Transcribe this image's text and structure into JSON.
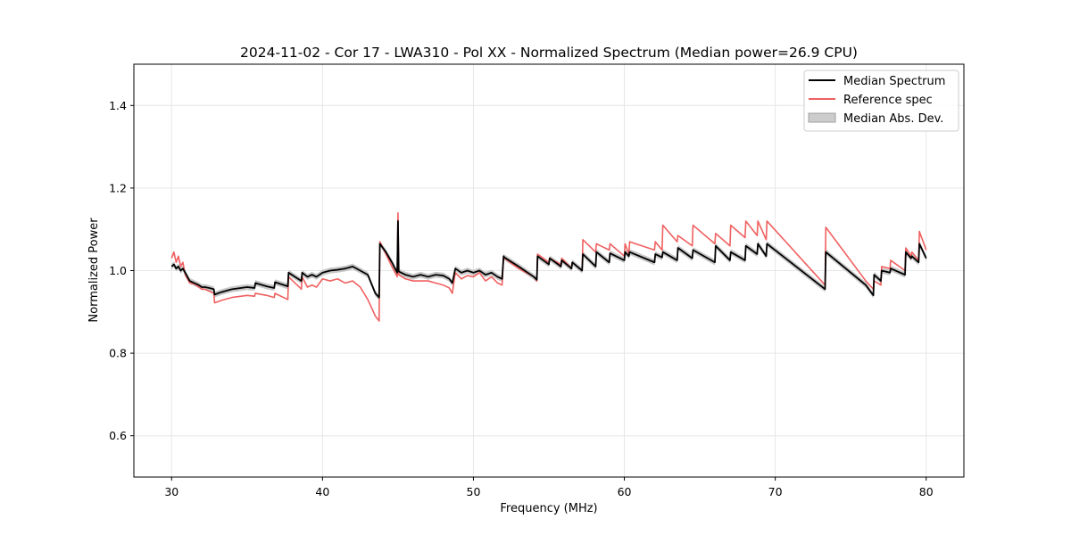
{
  "chart_data": {
    "type": "line",
    "title": "2024-11-02 - Cor 17 - LWA310 - Pol XX - Normalized Spectrum (Median power=26.9 CPU)",
    "xlabel": "Frequency (MHz)",
    "ylabel": "Normalized Power",
    "xlim": [
      27.5,
      82.5
    ],
    "ylim": [
      0.5,
      1.5
    ],
    "xticks": [
      30,
      40,
      50,
      60,
      70,
      80
    ],
    "yticks": [
      0.6,
      0.8,
      1.0,
      1.2,
      1.4
    ],
    "xtick_labels": [
      "30",
      "40",
      "50",
      "60",
      "70",
      "80"
    ],
    "ytick_labels": [
      "0.6",
      "0.8",
      "1.0",
      "1.2",
      "1.4"
    ],
    "grid": true,
    "legend_position": "top-right",
    "legend": [
      "Median Spectrum",
      "Reference spec",
      "Median Abs. Dev."
    ],
    "colors": {
      "median": "#000000",
      "reference": "#f06060",
      "mad": "#bdbdbd"
    },
    "mad_halfwidth": 0.007,
    "series": [
      {
        "name": "Median Spectrum",
        "x": [
          30.0,
          30.15,
          30.3,
          30.45,
          30.6,
          30.75,
          30.9,
          31.05,
          31.2,
          31.5,
          31.8,
          32.0,
          32.2,
          32.5,
          32.8,
          32.85,
          33.3,
          34.0,
          35.0,
          35.5,
          35.55,
          36.3,
          36.8,
          36.85,
          37.7,
          37.75,
          38.6,
          38.65,
          39.0,
          39.3,
          39.6,
          40.0,
          40.5,
          41.0,
          41.5,
          42.0,
          42.5,
          43.0,
          43.5,
          43.75,
          43.8,
          44.2,
          44.6,
          44.95,
          45.0,
          45.05,
          45.5,
          46.0,
          46.5,
          47.0,
          47.5,
          48.0,
          48.4,
          48.6,
          48.8,
          49.2,
          49.6,
          50.0,
          50.4,
          50.8,
          51.2,
          51.6,
          51.9,
          52.0,
          52.05,
          53.0,
          54.0,
          54.2,
          54.25,
          55.0,
          55.05,
          55.8,
          55.85,
          56.5,
          56.55,
          57.2,
          57.25,
          58.1,
          58.15,
          59.0,
          59.05,
          60.0,
          60.05,
          60.3,
          60.35,
          62.0,
          62.05,
          62.5,
          62.55,
          63.5,
          63.55,
          64.5,
          64.55,
          66.0,
          66.05,
          67.0,
          67.05,
          68.0,
          68.05,
          68.8,
          68.85,
          69.4,
          69.45,
          73.3,
          73.35,
          76.0,
          76.5,
          76.55,
          77.0,
          77.05,
          77.6,
          77.65,
          78.6,
          78.65,
          79.0,
          79.05,
          79.5,
          79.55,
          80.0
        ],
        "y": [
          1.01,
          1.015,
          1.005,
          1.01,
          1.0,
          1.005,
          0.995,
          0.985,
          0.975,
          0.97,
          0.965,
          0.96,
          0.96,
          0.958,
          0.955,
          0.942,
          0.948,
          0.955,
          0.96,
          0.958,
          0.97,
          0.962,
          0.958,
          0.972,
          0.962,
          0.995,
          0.975,
          0.995,
          0.985,
          0.99,
          0.985,
          0.995,
          1.0,
          1.002,
          1.005,
          1.01,
          1.0,
          0.99,
          0.945,
          0.935,
          1.065,
          1.045,
          1.02,
          0.995,
          1.12,
          0.998,
          0.99,
          0.985,
          0.99,
          0.985,
          0.99,
          0.988,
          0.98,
          0.97,
          1.005,
          0.995,
          1.0,
          0.995,
          1.0,
          0.99,
          0.995,
          0.985,
          0.98,
          1.035,
          1.032,
          1.01,
          0.985,
          0.978,
          1.035,
          1.015,
          1.03,
          1.01,
          1.025,
          1.005,
          1.02,
          1.0,
          1.04,
          1.01,
          1.045,
          1.02,
          1.042,
          1.025,
          1.045,
          1.035,
          1.045,
          1.02,
          1.04,
          1.032,
          1.045,
          1.025,
          1.055,
          1.03,
          1.05,
          1.02,
          1.06,
          1.025,
          1.045,
          1.025,
          1.06,
          1.04,
          1.065,
          1.035,
          1.065,
          0.955,
          1.045,
          0.965,
          0.94,
          0.99,
          0.975,
          1.0,
          0.995,
          1.005,
          0.99,
          1.045,
          1.03,
          1.035,
          1.02,
          1.065,
          1.03
        ],
        "color": "#000000"
      },
      {
        "name": "Reference spec",
        "x": [
          30.0,
          30.15,
          30.3,
          30.45,
          30.6,
          30.75,
          30.9,
          31.05,
          31.2,
          31.5,
          31.8,
          32.0,
          32.2,
          32.5,
          32.8,
          32.85,
          33.3,
          34.0,
          35.0,
          35.5,
          35.55,
          36.3,
          36.8,
          36.85,
          37.7,
          37.75,
          38.6,
          38.65,
          39.0,
          39.3,
          39.6,
          40.0,
          40.5,
          41.0,
          41.5,
          42.0,
          42.5,
          43.0,
          43.5,
          43.75,
          43.8,
          44.2,
          44.6,
          44.95,
          45.0,
          45.05,
          45.5,
          46.0,
          46.5,
          47.0,
          47.5,
          48.0,
          48.4,
          48.6,
          48.8,
          49.2,
          49.6,
          50.0,
          50.4,
          50.8,
          51.2,
          51.6,
          51.9,
          52.0,
          52.05,
          53.0,
          54.0,
          54.2,
          54.25,
          55.0,
          55.05,
          55.8,
          55.85,
          56.5,
          56.55,
          57.2,
          57.25,
          58.1,
          58.15,
          59.0,
          59.05,
          60.0,
          60.05,
          60.3,
          60.35,
          62.0,
          62.05,
          62.5,
          62.55,
          63.5,
          63.55,
          64.5,
          64.55,
          66.0,
          66.05,
          67.0,
          67.05,
          68.0,
          68.05,
          68.8,
          68.85,
          69.4,
          69.45,
          73.3,
          73.35,
          76.0,
          76.5,
          76.55,
          77.0,
          77.05,
          77.6,
          77.65,
          78.6,
          78.65,
          79.0,
          79.05,
          79.5,
          79.55,
          80.0
        ],
        "y": [
          1.03,
          1.045,
          1.02,
          1.035,
          1.01,
          1.02,
          0.99,
          0.98,
          0.97,
          0.968,
          0.96,
          0.955,
          0.955,
          0.95,
          0.945,
          0.922,
          0.928,
          0.935,
          0.94,
          0.938,
          0.945,
          0.94,
          0.935,
          0.945,
          0.93,
          0.985,
          0.955,
          0.985,
          0.96,
          0.965,
          0.96,
          0.98,
          0.975,
          0.98,
          0.97,
          0.975,
          0.96,
          0.93,
          0.89,
          0.878,
          1.07,
          1.04,
          1.01,
          0.985,
          1.14,
          0.99,
          0.98,
          0.975,
          0.975,
          0.975,
          0.97,
          0.965,
          0.958,
          0.945,
          0.995,
          0.98,
          0.988,
          0.985,
          0.995,
          0.975,
          0.985,
          0.97,
          0.965,
          1.035,
          1.03,
          1.005,
          0.985,
          0.975,
          1.04,
          1.02,
          1.03,
          1.015,
          1.03,
          1.005,
          1.02,
          1.0,
          1.075,
          1.045,
          1.065,
          1.05,
          1.065,
          1.035,
          1.065,
          1.04,
          1.07,
          1.05,
          1.07,
          1.05,
          1.11,
          1.07,
          1.085,
          1.06,
          1.11,
          1.065,
          1.09,
          1.06,
          1.11,
          1.08,
          1.12,
          1.085,
          1.12,
          1.075,
          1.12,
          0.965,
          1.105,
          0.975,
          0.955,
          0.975,
          0.965,
          1.01,
          1.005,
          1.025,
          1.0,
          1.055,
          1.035,
          1.045,
          1.025,
          1.095,
          1.05
        ],
        "color": "#f06060"
      }
    ]
  }
}
